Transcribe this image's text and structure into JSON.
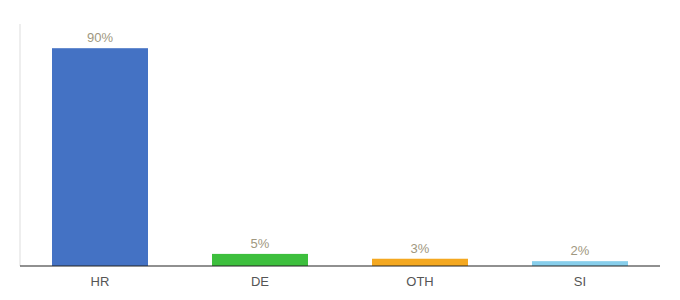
{
  "chart_data": {
    "type": "bar",
    "categories": [
      "HR",
      "DE",
      "OTH",
      "SI"
    ],
    "values": [
      90,
      5,
      3,
      2
    ],
    "value_labels": [
      "90%",
      "5%",
      "3%",
      "2%"
    ],
    "colors": [
      "#4472c4",
      "#3dbf3d",
      "#f4a820",
      "#87ceeb"
    ],
    "ylim": [
      0,
      100
    ],
    "grid": false,
    "data_labels": true,
    "tick_labels": "x"
  }
}
